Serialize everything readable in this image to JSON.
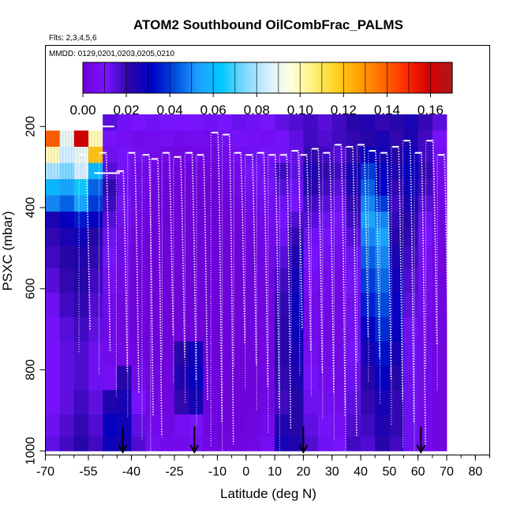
{
  "chart_data": {
    "type": "heatmap",
    "title": "ATOM2 Southbound OilCombFrac_PALMS",
    "subtitle_flights": "Flts: 2,3,4,5,6",
    "subtitle_dates": "MMDD: 0129,0201,0203,0205,0210",
    "xlabel": "Latitude (deg N)",
    "ylabel": "PSXC (mbar)",
    "xlim": [
      -70,
      85
    ],
    "ylim": [
      1010,
      0
    ],
    "x_ticks": [
      -70,
      -55,
      -40,
      -25,
      -10,
      0,
      10,
      20,
      30,
      40,
      50,
      60,
      70,
      80
    ],
    "x_tick_labels": [
      "-70",
      "-55",
      "-40",
      "-25",
      "-10",
      "0",
      "10",
      "20",
      "30",
      "40",
      "50",
      "60",
      "70",
      "80"
    ],
    "y_ticks": [
      200,
      400,
      600,
      800,
      1000
    ],
    "y_tick_labels": [
      "200",
      "400",
      "600",
      "800",
      "1000"
    ],
    "colorbar": {
      "min": 0.0,
      "max": 0.17,
      "ticks": [
        0.0,
        0.02,
        0.04,
        0.06,
        0.08,
        0.1,
        0.12,
        0.14,
        0.16
      ],
      "tick_labels": [
        "0.00",
        "0.02",
        "0.04",
        "0.06",
        "0.08",
        "0.10",
        "0.12",
        "0.14",
        "0.16"
      ],
      "colors": [
        "#6f00d8",
        "#7a14ff",
        "#2a06a8",
        "#0000c8",
        "#0050e0",
        "#1fa0ff",
        "#00c8ff",
        "#7ad8ff",
        "#d4eeff",
        "#ffffe0",
        "#fff07a",
        "#ffd21e",
        "#ff9e00",
        "#ff6a00",
        "#ff2a00",
        "#d40000",
        "#ad1a1a"
      ]
    },
    "latitude_bins": [
      -67.5,
      -62.5,
      -57.5,
      -52.5,
      -47.5,
      -42.5,
      -37.5,
      -32.5,
      -27.5,
      -22.5,
      -17.5,
      -12.5,
      -7.5,
      -2.5,
      2.5,
      7.5,
      12.5,
      17.5,
      22.5,
      27.5,
      32.5,
      37.5,
      42.5,
      47.5,
      52.5,
      57.5,
      62.5,
      67.5
    ],
    "pressure_bins": [
      190,
      230,
      270,
      310,
      350,
      390,
      430,
      470,
      520,
      580,
      640,
      700,
      760,
      820,
      880,
      940,
      990
    ],
    "values": [
      [
        null,
        null,
        null,
        null,
        0.015,
        0.012,
        0.01,
        0.012,
        0.011,
        0.01,
        0.011,
        0.012,
        0.011,
        0.013,
        0.012,
        0.011,
        0.014,
        0.016,
        0.018,
        0.015,
        0.018,
        0.022,
        0.024,
        0.02,
        0.022,
        0.025,
        0.02,
        0.015
      ],
      [
        0.14,
        0.09,
        0.16,
        0.1,
        0.01,
        0.008,
        0.006,
        0.007,
        0.008,
        0.006,
        0.007,
        0.006,
        0.008,
        0.01,
        0.009,
        0.008,
        0.01,
        0.014,
        0.018,
        0.016,
        0.018,
        0.02,
        0.022,
        0.025,
        0.02,
        0.024,
        0.018,
        0.01
      ],
      [
        0.1,
        0.085,
        0.09,
        0.12,
        0.012,
        0.01,
        0.008,
        0.006,
        0.005,
        0.004,
        0.005,
        0.004,
        0.006,
        0.008,
        0.012,
        0.01,
        0.011,
        0.013,
        0.02,
        0.018,
        0.015,
        0.02,
        0.03,
        0.026,
        0.022,
        0.028,
        0.018,
        0.008
      ],
      [
        0.08,
        0.075,
        0.085,
        0.06,
        0.015,
        0.01,
        0.005,
        0.004,
        0.003,
        0.002,
        0.002,
        0.002,
        0.004,
        0.006,
        0.01,
        0.012,
        0.018,
        0.014,
        0.024,
        0.02,
        0.018,
        0.026,
        0.04,
        0.03,
        0.024,
        0.03,
        0.02,
        0.006
      ],
      [
        0.06,
        0.055,
        0.065,
        0.045,
        0.02,
        0.012,
        0.006,
        0.003,
        0.002,
        0.001,
        0.001,
        0.001,
        0.002,
        0.004,
        0.008,
        0.01,
        0.015,
        0.012,
        0.022,
        0.018,
        0.015,
        0.024,
        0.045,
        0.032,
        0.02,
        0.028,
        0.018,
        0.005
      ],
      [
        0.05,
        0.045,
        0.055,
        0.04,
        0.018,
        0.01,
        0.005,
        0.002,
        0.001,
        0.001,
        0.001,
        0.001,
        0.001,
        0.003,
        0.006,
        0.008,
        0.012,
        0.01,
        0.018,
        0.015,
        0.012,
        0.02,
        0.05,
        0.04,
        0.018,
        0.025,
        0.015,
        0.004
      ],
      [
        0.025,
        0.03,
        0.035,
        0.03,
        0.015,
        0.008,
        0.004,
        0.002,
        0.001,
        0.001,
        0.001,
        0.001,
        0.001,
        0.002,
        0.004,
        0.006,
        0.01,
        0.016,
        0.015,
        0.012,
        0.01,
        0.018,
        0.055,
        0.05,
        0.02,
        0.022,
        0.012,
        0.003
      ],
      [
        0.02,
        0.025,
        0.028,
        0.022,
        0.012,
        0.006,
        0.003,
        0.001,
        0.001,
        0.001,
        0.001,
        0.001,
        0.001,
        0.001,
        0.003,
        0.005,
        0.012,
        0.02,
        0.012,
        0.01,
        0.008,
        0.015,
        0.05,
        0.055,
        0.022,
        0.02,
        0.01,
        0.003
      ],
      [
        0.018,
        0.022,
        0.024,
        0.02,
        0.01,
        0.005,
        0.002,
        0.001,
        0.001,
        0.001,
        0.001,
        0.001,
        0.001,
        0.001,
        0.002,
        0.004,
        0.015,
        0.024,
        0.01,
        0.008,
        0.006,
        0.012,
        0.045,
        0.05,
        0.025,
        0.018,
        0.008,
        0.003
      ],
      [
        0.015,
        0.02,
        0.022,
        0.018,
        0.008,
        0.004,
        0.002,
        0.001,
        0.001,
        0.001,
        0.001,
        0.001,
        0.001,
        0.001,
        0.002,
        0.003,
        0.018,
        0.026,
        0.008,
        0.006,
        0.005,
        0.01,
        0.04,
        0.046,
        0.028,
        0.016,
        0.007,
        0.003
      ],
      [
        0.012,
        0.018,
        0.02,
        0.016,
        0.006,
        0.003,
        0.002,
        0.001,
        0.001,
        0.001,
        0.001,
        0.001,
        0.001,
        0.001,
        0.002,
        0.003,
        0.02,
        0.028,
        0.006,
        0.005,
        0.004,
        0.008,
        0.036,
        0.042,
        0.03,
        0.014,
        0.006,
        0.003
      ],
      [
        0.01,
        0.015,
        0.018,
        0.014,
        0.005,
        0.003,
        0.002,
        0.001,
        0.001,
        0.001,
        0.001,
        0.001,
        0.001,
        0.001,
        0.002,
        0.003,
        0.022,
        0.028,
        0.006,
        0.004,
        0.004,
        0.008,
        0.03,
        0.038,
        0.03,
        0.012,
        0.005,
        0.003
      ],
      [
        0.01,
        0.014,
        0.016,
        0.012,
        0.006,
        0.004,
        0.003,
        0.002,
        0.001,
        0.022,
        0.028,
        0.001,
        0.001,
        0.001,
        0.002,
        0.003,
        0.022,
        0.026,
        0.008,
        0.005,
        0.004,
        0.01,
        0.026,
        0.034,
        0.026,
        0.012,
        0.006,
        0.003
      ],
      [
        0.01,
        0.014,
        0.016,
        0.012,
        0.008,
        0.022,
        0.006,
        0.003,
        0.002,
        0.024,
        0.03,
        0.002,
        0.001,
        0.001,
        0.002,
        0.003,
        0.02,
        0.024,
        0.01,
        0.006,
        0.005,
        0.012,
        0.022,
        0.03,
        0.022,
        0.012,
        0.006,
        0.003
      ],
      [
        0.01,
        0.014,
        0.018,
        0.014,
        0.024,
        0.026,
        0.01,
        0.004,
        0.003,
        0.02,
        0.026,
        0.002,
        0.001,
        0.001,
        0.002,
        0.004,
        0.018,
        0.022,
        0.012,
        0.008,
        0.006,
        0.014,
        0.02,
        0.026,
        0.02,
        0.012,
        0.006,
        0.003
      ],
      [
        0.012,
        0.016,
        0.02,
        0.016,
        0.03,
        0.028,
        0.014,
        0.006,
        0.004,
        0.008,
        0.01,
        0.003,
        0.002,
        0.002,
        0.003,
        0.006,
        0.024,
        0.022,
        0.014,
        0.01,
        0.008,
        0.016,
        0.018,
        0.024,
        0.02,
        0.012,
        0.006,
        0.003
      ],
      [
        0.014,
        0.018,
        0.022,
        0.018,
        0.028,
        0.026,
        0.016,
        0.008,
        0.006,
        0.006,
        0.008,
        0.004,
        0.003,
        0.003,
        0.004,
        0.008,
        0.026,
        0.024,
        0.016,
        0.012,
        0.01,
        0.018,
        0.016,
        0.022,
        0.018,
        0.012,
        0.006,
        0.003
      ]
    ],
    "flight_markers_lat": [
      -43,
      -18,
      20,
      61
    ],
    "profile_traces_lat": [
      -58,
      -51,
      -45,
      -41,
      -36,
      -33,
      -29,
      -25,
      -21,
      -17,
      -12,
      -8,
      -4,
      0,
      4,
      8,
      12,
      16,
      19,
      23,
      27,
      31,
      35,
      39,
      43,
      47,
      51,
      55,
      59,
      63,
      67
    ],
    "grid": false,
    "legend": "colorbar top"
  }
}
